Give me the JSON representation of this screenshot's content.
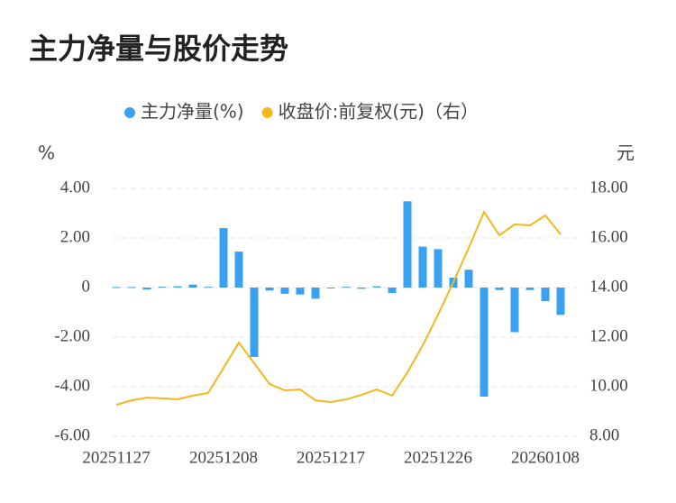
{
  "chart_data": {
    "type": "bar-line",
    "title": "主力净量与股价走势",
    "ylabel": "%",
    "y2label": "元",
    "categories": [
      "20251127",
      null,
      null,
      null,
      null,
      null,
      null,
      "20251208",
      null,
      null,
      null,
      null,
      null,
      null,
      "20251217",
      null,
      null,
      null,
      null,
      null,
      null,
      "20251226",
      null,
      null,
      null,
      null,
      null,
      null,
      "20260108",
      null
    ],
    "series": [
      {
        "name": "主力净量(%)",
        "type": "bar",
        "color": "#3aa0f0",
        "values": [
          0.02,
          0.02,
          -0.08,
          0.03,
          0.05,
          0.12,
          0.03,
          2.4,
          1.45,
          -2.8,
          -0.12,
          -0.25,
          -0.28,
          -0.45,
          -0.03,
          0.03,
          -0.05,
          0.05,
          -0.22,
          3.48,
          1.65,
          1.55,
          0.4,
          0.72,
          -4.4,
          -0.1,
          -1.8,
          -0.1,
          -0.55,
          -1.1
        ]
      },
      {
        "name": "收盘价:前复权(元)（右）",
        "type": "line",
        "axis": "y2",
        "color": "#f5b81c",
        "values": [
          9.27,
          9.45,
          9.56,
          9.53,
          9.49,
          9.64,
          9.75,
          10.76,
          11.78,
          10.95,
          10.11,
          9.85,
          9.89,
          9.45,
          9.38,
          9.49,
          9.67,
          9.89,
          9.64,
          10.58,
          11.67,
          12.91,
          14.22,
          15.6,
          17.05,
          16.11,
          16.55,
          16.51,
          16.91,
          16.15
        ]
      }
    ],
    "ylim": [
      -6,
      4
    ],
    "yticks": [
      {
        "value": -6,
        "label": "-6.00"
      },
      {
        "value": -4,
        "label": "-4.00"
      },
      {
        "value": -2,
        "label": "-2.00"
      },
      0,
      {
        "value": 2,
        "label": "2.00"
      },
      {
        "value": 4,
        "label": "4.00"
      }
    ],
    "y2lim": [
      8,
      18
    ],
    "y2ticks": [
      {
        "value": 8,
        "label": "8.00"
      },
      {
        "value": 10,
        "label": "10.00"
      },
      {
        "value": 12,
        "label": "12.00"
      },
      {
        "value": 14,
        "label": "14.00"
      },
      {
        "value": 16,
        "label": "16.00"
      },
      {
        "value": 18,
        "label": "18.00"
      }
    ],
    "grid": true,
    "legend": "top"
  }
}
